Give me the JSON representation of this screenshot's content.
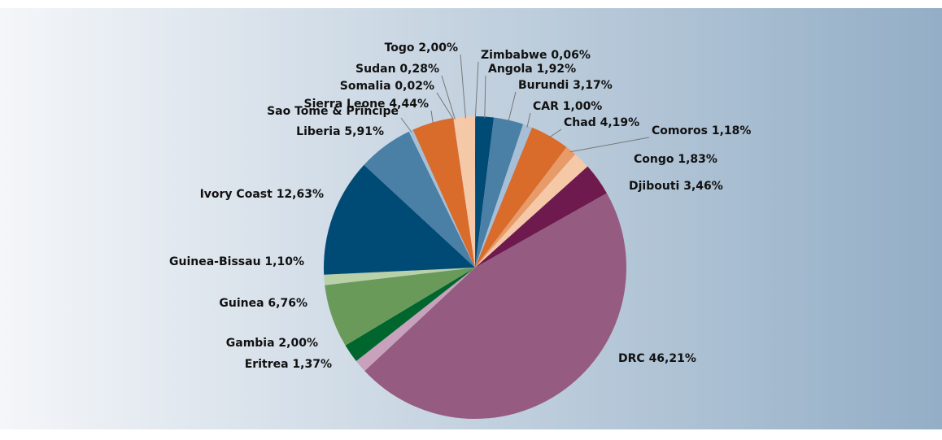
{
  "chart_data": {
    "type": "pie",
    "categories": [
      "Zimbabwe",
      "Angola",
      "Burundi",
      "CAR",
      "Chad",
      "Comoros",
      "Congo",
      "Djibouti",
      "DRC",
      "Eritrea",
      "Gambia",
      "Guinea",
      "Guinea-Bissau",
      "Ivory Coast",
      "Liberia",
      "Sao Tome & Principe",
      "Sierra Leone",
      "Somalia",
      "Sudan",
      "Togo"
    ],
    "values": [
      0.06,
      1.92,
      3.17,
      1.0,
      4.19,
      1.18,
      1.83,
      3.46,
      46.21,
      1.37,
      2.0,
      6.76,
      1.1,
      12.63,
      5.91,
      0.47,
      4.44,
      0.02,
      0.28,
      2.0
    ],
    "value_labels": [
      "0,06%",
      "1,92%",
      "3,17%",
      "1,00%",
      "4,19%",
      "1,18%",
      "1,83%",
      "3,46%",
      "46,21%",
      "1,37%",
      "2,00%",
      "6,76%",
      "1,10%",
      "12,63%",
      "5,91%",
      null,
      "4,44%",
      "0,02%",
      "0,28%",
      "2,00%"
    ],
    "colors": [
      "#6e1a4e",
      "#004b76",
      "#4a7fa6",
      "#a6bfd6",
      "#d96b2b",
      "#e89a68",
      "#f5c9a8",
      "#6e1a4e",
      "#955b80",
      "#c8a2bd",
      "#00662e",
      "#6a9a5a",
      "#b9d1a8",
      "#004b76",
      "#4a7fa6",
      "#a6bfd6",
      "#d96b2b",
      "#e89a68",
      "#f5c9a8",
      "#f5c9a8"
    ]
  }
}
